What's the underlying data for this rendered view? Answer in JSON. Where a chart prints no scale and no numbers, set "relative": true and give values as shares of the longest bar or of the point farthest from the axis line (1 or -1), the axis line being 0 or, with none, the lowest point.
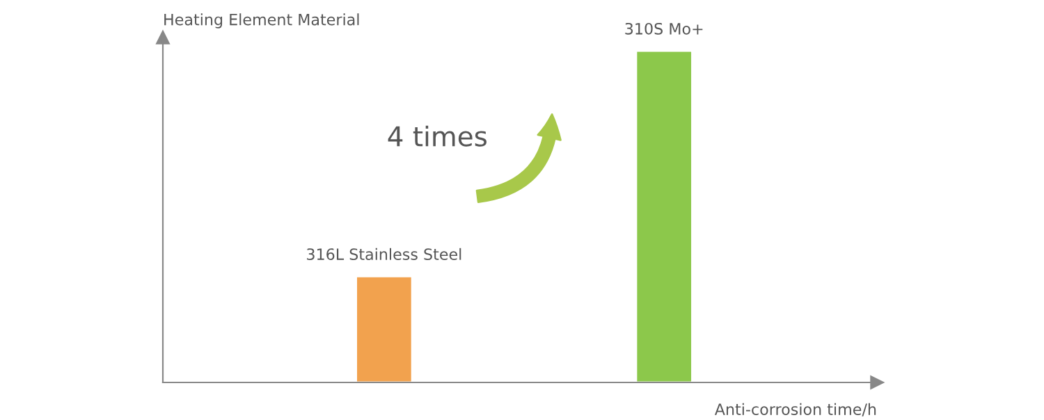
{
  "chart_data": {
    "type": "bar",
    "relative": true,
    "categories": [
      "316L Stainless Steel",
      "310S Mo+"
    ],
    "values": [
      0.32,
      1
    ],
    "colors": [
      "#f2a24e",
      "#8cc84b"
    ],
    "xlabel": "Anti-corrosion time/h",
    "ylabel": "Heating Element Material",
    "annotations": [
      "4 times"
    ]
  }
}
